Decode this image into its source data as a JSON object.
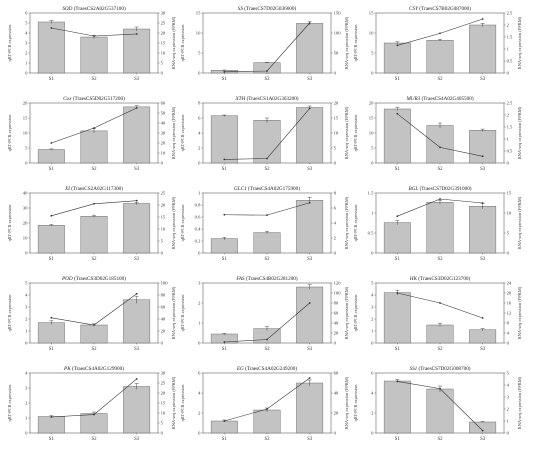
{
  "figure": {
    "left_axis_label": "qRT-PCR expression",
    "right_axis_label": "RNA-seq expression (FPKM)",
    "colors": {
      "bar": "#c3c3c3",
      "bar_edge": "#555555",
      "line": "#333333",
      "axis": "#444444"
    }
  },
  "chart_data": [
    {
      "type": "bar",
      "gene": "SOD",
      "id": "(TraesCS2A02G537100)",
      "categories": [
        "S1",
        "S2",
        "S3"
      ],
      "ylim": [
        0,
        6
      ],
      "yticks": [
        0,
        1,
        2,
        3,
        4,
        5,
        6
      ],
      "bars": [
        5.1,
        3.6,
        4.4
      ],
      "bar_err": [
        0.15,
        0.15,
        0.2
      ],
      "y2lim": [
        0,
        30
      ],
      "y2ticks": [
        0,
        5,
        10,
        15,
        20,
        25,
        30
      ],
      "line": [
        22.5,
        18.5,
        19.5
      ]
    },
    {
      "type": "bar",
      "gene": "SS",
      "id": "(TraesCS7D02G036600)",
      "categories": [
        "S1",
        "S2",
        "S3"
      ],
      "ylim": [
        0,
        15
      ],
      "yticks": [
        0,
        5,
        10,
        15
      ],
      "bars": [
        0.7,
        2.6,
        12.4
      ],
      "bar_err": [
        0.05,
        0.1,
        0.4
      ],
      "y2lim": [
        0,
        150
      ],
      "y2ticks": [
        0,
        50,
        100,
        150
      ],
      "line": [
        3,
        5,
        125
      ]
    },
    {
      "type": "bar",
      "gene": "CSY",
      "id": "(TraesCS7B02G087000)",
      "categories": [
        "S1",
        "S2",
        "S3"
      ],
      "ylim": [
        0,
        15
      ],
      "yticks": [
        0,
        5,
        10,
        15
      ],
      "bars": [
        7.5,
        8.2,
        12.0
      ],
      "bar_err": [
        0.3,
        0.2,
        0.4
      ],
      "y2lim": [
        0,
        2.5
      ],
      "y2ticks": [
        0,
        0.5,
        1.0,
        1.5,
        2.0,
        2.5
      ],
      "line": [
        1.15,
        1.65,
        2.25
      ]
    },
    {
      "type": "bar",
      "gene": "Cox",
      "id": "(TraesCS5D02G517200)",
      "categories": [
        "S1",
        "S2",
        "S3"
      ],
      "ylim": [
        0,
        20
      ],
      "yticks": [
        0,
        5,
        10,
        15,
        20
      ],
      "bars": [
        4.5,
        10.7,
        18.7
      ],
      "bar_err": [
        0.2,
        0.7,
        0.4
      ],
      "y2lim": [
        0,
        60
      ],
      "y2ticks": [
        0,
        10,
        20,
        30,
        40,
        50,
        60
      ],
      "line": [
        20,
        35,
        55
      ]
    },
    {
      "type": "bar",
      "gene": "XTH",
      "id": "(TraesCS1A02G363200)",
      "categories": [
        "S1",
        "S2",
        "S3"
      ],
      "ylim": [
        0,
        8
      ],
      "yticks": [
        0,
        2,
        4,
        6,
        8
      ],
      "bars": [
        6.3,
        5.7,
        7.4
      ],
      "bar_err": [
        0.1,
        0.3,
        0.2
      ],
      "y2lim": [
        0,
        20
      ],
      "y2ticks": [
        0,
        5,
        10,
        15,
        20
      ],
      "line": [
        1.2,
        1.5,
        18.2
      ]
    },
    {
      "type": "bar",
      "gene": "MUR3",
      "id": "(TraesCS4A02G405500)",
      "categories": [
        "S1",
        "S2",
        "S3"
      ],
      "ylim": [
        0,
        20
      ],
      "yticks": [
        0,
        5,
        10,
        15,
        20
      ],
      "bars": [
        18.0,
        12.5,
        10.9
      ],
      "bar_err": [
        0.5,
        0.8,
        0.4
      ],
      "y2lim": [
        0,
        2.5
      ],
      "y2ticks": [
        0,
        0.5,
        1.0,
        1.5,
        2.0,
        2.5
      ],
      "line": [
        2.05,
        0.65,
        0.28
      ]
    },
    {
      "type": "bar",
      "gene": "XI",
      "id": "(TraesCS2A02G117300)",
      "categories": [
        "S1",
        "S2",
        "S3"
      ],
      "ylim": [
        0,
        40
      ],
      "yticks": [
        0,
        10,
        20,
        30,
        40
      ],
      "bars": [
        18.5,
        24.5,
        33.0
      ],
      "bar_err": [
        0.5,
        0.7,
        0.8
      ],
      "y2lim": [
        0,
        25
      ],
      "y2ticks": [
        0,
        5,
        10,
        15,
        20,
        25
      ],
      "line": [
        15.5,
        20.5,
        21.8
      ]
    },
    {
      "type": "bar",
      "gene": "GLC1",
      "id": "(TraesCS4A02G175900)",
      "categories": [
        "S1",
        "S2",
        "S3"
      ],
      "ylim": [
        0,
        1.0
      ],
      "yticks": [
        0,
        0.2,
        0.4,
        0.6,
        0.8,
        1.0
      ],
      "bars": [
        0.24,
        0.34,
        0.88
      ],
      "bar_err": [
        0.02,
        0.02,
        0.05
      ],
      "y2lim": [
        0,
        8
      ],
      "y2ticks": [
        0,
        2,
        4,
        6,
        8
      ],
      "line": [
        5.1,
        5.05,
        6.7
      ]
    },
    {
      "type": "bar",
      "gene": "BGL",
      "id": "(TraesCS7D02G391000)",
      "categories": [
        "S1",
        "S2",
        "S3"
      ],
      "ylim": [
        0,
        1.5
      ],
      "yticks": [
        0,
        0.5,
        1.0,
        1.5
      ],
      "bars": [
        0.76,
        1.27,
        1.17
      ],
      "bar_err": [
        0.05,
        0.05,
        0.07
      ],
      "y2lim": [
        0,
        15
      ],
      "y2ticks": [
        0,
        5,
        10,
        15
      ],
      "line": [
        9.2,
        13.5,
        12.5
      ]
    },
    {
      "type": "bar",
      "gene": "POD",
      "id": "(TraesCS3D02G185100)",
      "categories": [
        "S1",
        "S2",
        "S3"
      ],
      "ylim": [
        0,
        5
      ],
      "yticks": [
        0,
        1,
        2,
        3,
        4,
        5
      ],
      "bars": [
        1.7,
        1.5,
        3.6
      ],
      "bar_err": [
        0.15,
        0.1,
        0.3
      ],
      "y2lim": [
        0,
        100
      ],
      "y2ticks": [
        0,
        20,
        40,
        60,
        80,
        100
      ],
      "line": [
        42,
        30,
        82
      ]
    },
    {
      "type": "bar",
      "gene": "FAS",
      "id": "(TraesCS4B02G281200)",
      "categories": [
        "S1",
        "S2",
        "S3"
      ],
      "ylim": [
        0,
        3
      ],
      "yticks": [
        0,
        1,
        2,
        3
      ],
      "bars": [
        0.45,
        0.72,
        2.8
      ],
      "bar_err": [
        0.03,
        0.1,
        0.12
      ],
      "y2lim": [
        0,
        120
      ],
      "y2ticks": [
        0,
        20,
        40,
        60,
        80,
        100,
        120
      ],
      "line": [
        2,
        7,
        80
      ]
    },
    {
      "type": "bar",
      "gene": "HK",
      "id": "(TraesCS3D02G123700)",
      "categories": [
        "S1",
        "S2",
        "S3"
      ],
      "ylim": [
        0,
        5
      ],
      "yticks": [
        0,
        1,
        2,
        3,
        4,
        5
      ],
      "bars": [
        4.2,
        1.5,
        1.1
      ],
      "bar_err": [
        0.2,
        0.15,
        0.1
      ],
      "y2lim": [
        0,
        24
      ],
      "y2ticks": [
        0,
        4,
        8,
        12,
        16,
        20,
        24
      ],
      "line": [
        20,
        16,
        10
      ]
    },
    {
      "type": "bar",
      "gene": "PK",
      "id": "(TraesCS4A02G129900)",
      "categories": [
        "S1",
        "S2",
        "S3"
      ],
      "ylim": [
        0,
        4
      ],
      "yticks": [
        0,
        1,
        2,
        3,
        4
      ],
      "bars": [
        1.1,
        1.3,
        3.1
      ],
      "bar_err": [
        0.05,
        0.1,
        0.2
      ],
      "y2lim": [
        0,
        30
      ],
      "y2ticks": [
        0,
        5,
        10,
        15,
        20,
        25,
        30
      ],
      "line": [
        8,
        9.2,
        27
      ]
    },
    {
      "type": "bar",
      "gene": "EG",
      "id": "(TraesCS4A02G249200)",
      "categories": [
        "S1",
        "S2",
        "S3"
      ],
      "ylim": [
        0,
        6
      ],
      "yticks": [
        0,
        2,
        4,
        6
      ],
      "bars": [
        1.2,
        2.3,
        5.0
      ],
      "bar_err": [
        0.1,
        0.2,
        0.3
      ],
      "y2lim": [
        0,
        60
      ],
      "y2ticks": [
        0,
        20,
        40,
        60
      ],
      "line": [
        12,
        24,
        55
      ]
    },
    {
      "type": "bar",
      "gene": "SS1",
      "id": "(TraesCS7D02G008700)",
      "categories": [
        "S1",
        "S2",
        "S3"
      ],
      "ylim": [
        0,
        6
      ],
      "yticks": [
        0,
        2,
        4,
        6
      ],
      "bars": [
        5.2,
        4.4,
        1.1
      ],
      "bar_err": [
        0.15,
        0.3,
        0.05
      ],
      "y2lim": [
        0,
        5
      ],
      "y2ticks": [
        0,
        1,
        2,
        3,
        4,
        5
      ],
      "line": [
        4.3,
        3.7,
        0.2
      ]
    }
  ]
}
